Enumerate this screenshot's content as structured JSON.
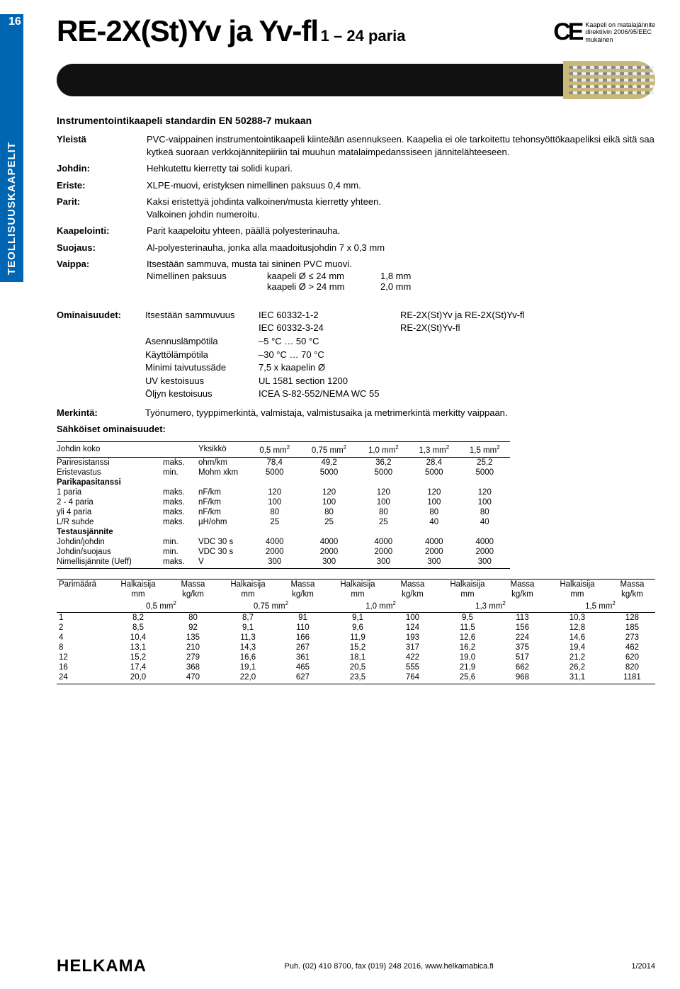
{
  "pageNumber": "16",
  "sideTab": "TEOLLISUUSKAAPELIT",
  "title": "RE-2X(St)Yv ja Yv-fl",
  "titleSuffix": "1 – 24 paria",
  "ceText": "Kaapeli on matalajännite\ndirektiivin 2006/95/EEC\nmukainen",
  "subtitle": "Instrumentointikaapeli standardin EN 50288-7 mukaan",
  "properties": [
    {
      "label": "Yleistä",
      "text": "PVC-vaippainen instrumentointikaapeli kiinteään asennukseen. Kaapelia ei ole tarkoitettu tehonsyöttökaapeliksi eikä sitä saa kytkeä suoraan verkkojännitepiiriin tai muuhun matalaimpedanssiseen jännitelähteeseen."
    },
    {
      "label": "Johdin:",
      "text": "Hehkutettu kierretty tai solidi kupari."
    },
    {
      "label": "Eriste:",
      "text": "XLPE-muovi, eristyksen nimellinen paksuus 0,4 mm."
    },
    {
      "label": "Parit:",
      "text": "Kaksi eristettyä johdinta valkoinen/musta kierretty yhteen.\nValkoinen johdin numeroitu."
    },
    {
      "label": "Kaapelointi:",
      "text": "Parit kaapeloitu yhteen, päällä polyesterinauha."
    },
    {
      "label": "Suojaus:",
      "text": "Al-polyesterinauha, jonka alla maadoitusjohdin 7 x 0,3 mm"
    },
    {
      "label": "Vaippa:",
      "text": "Itsestään sammuva, musta tai sininen PVC muovi."
    }
  ],
  "nominal": {
    "label": "Nimellinen paksuus",
    "rows": [
      {
        "cond": "kaapeli Ø ≤ 24 mm",
        "val": "1,8 mm"
      },
      {
        "cond": "kaapeli Ø > 24 mm",
        "val": "2,0 mm"
      }
    ]
  },
  "attributes": {
    "label": "Ominaisuudet:",
    "rows": [
      {
        "k": "Itsestään sammuvuus",
        "v": "IEC 60332-1-2",
        "r": "RE-2X(St)Yv ja RE-2X(St)Yv-fl"
      },
      {
        "k": "",
        "v": "IEC 60332-3-24",
        "r": "RE-2X(St)Yv-fl"
      },
      {
        "k": "Asennuslämpötila",
        "v": "–5 °C … 50 °C",
        "r": ""
      },
      {
        "k": "Käyttölämpötila",
        "v": "–30 °C … 70 °C",
        "r": ""
      },
      {
        "k": "Minimi taivutussäde",
        "v": "7,5 x kaapelin Ø",
        "r": ""
      },
      {
        "k": "UV kestoisuus",
        "v": "UL 1581 section 1200",
        "r": ""
      },
      {
        "k": "Öljyn kestoisuus",
        "v": "ICEA S-82-552/NEMA WC 55",
        "r": ""
      }
    ]
  },
  "merkinta": {
    "label": "Merkintä:",
    "text": "Työnumero, tyyppimerkintä, valmistaja, valmistusaika ja metrimerkintä merkitty vaippaan."
  },
  "elecTitle": "Sähköiset ominaisuudet:",
  "elecTable": {
    "unitHeader": "Yksikkö",
    "colHeaders": [
      "0,5 mm²",
      "0,75 mm²",
      "1,0 mm²",
      "1,3 mm²",
      "1,5 mm²"
    ],
    "groups": [
      {
        "label": "Johdin koko",
        "isHeader": true
      },
      {
        "label": "Pariresistanssi",
        "cond": "maks.",
        "unit": "ohm/km",
        "vals": [
          "78,4",
          "49,2",
          "36,2",
          "28,4",
          "25,2"
        ]
      },
      {
        "label": "Eristevastus",
        "cond": "min.",
        "unit": "Mohm xkm",
        "vals": [
          "5000",
          "5000",
          "5000",
          "5000",
          "5000"
        ]
      },
      {
        "label": "Parikapasitanssi",
        "bold": true
      },
      {
        "label": "1 paria",
        "cond": "maks.",
        "unit": "nF/km",
        "vals": [
          "120",
          "120",
          "120",
          "120",
          "120"
        ]
      },
      {
        "label": "2 - 4 paria",
        "cond": "maks.",
        "unit": "nF/km",
        "vals": [
          "100",
          "100",
          "100",
          "100",
          "100"
        ]
      },
      {
        "label": "yli 4 paria",
        "cond": "maks.",
        "unit": "nF/km",
        "vals": [
          "80",
          "80",
          "80",
          "80",
          "80"
        ]
      },
      {
        "label": "L/R suhde",
        "cond": "maks.",
        "unit": "µH/ohm",
        "vals": [
          "25",
          "25",
          "25",
          "40",
          "40"
        ]
      },
      {
        "label": "Testausjännite",
        "bold": true
      },
      {
        "label": "Johdin/johdin",
        "cond": "min.",
        "unit": "VDC 30 s",
        "vals": [
          "4000",
          "4000",
          "4000",
          "4000",
          "4000"
        ]
      },
      {
        "label": "Johdin/suojaus",
        "cond": "min.",
        "unit": "VDC 30 s",
        "vals": [
          "2000",
          "2000",
          "2000",
          "2000",
          "2000"
        ]
      },
      {
        "label": "Nimellisjännite (Ueff)",
        "cond": "maks.",
        "unit": "V",
        "vals": [
          "300",
          "300",
          "300",
          "300",
          "300"
        ],
        "last": true
      }
    ]
  },
  "dimTable": {
    "topHeaders": [
      "Parimäärä",
      "Halkaisija",
      "Massa",
      "Halkaisija",
      "Massa",
      "Halkaisija",
      "Massa",
      "Halkaisija",
      "Massa",
      "Halkaisija",
      "Massa"
    ],
    "units": [
      "",
      "mm",
      "kg/km",
      "mm",
      "kg/km",
      "mm",
      "kg/km",
      "mm",
      "kg/km",
      "mm",
      "kg/km"
    ],
    "sizeRow": [
      "",
      "0,5 mm²",
      "0,75 mm²",
      "1,0 mm²",
      "1,3 mm²",
      "1,5 mm²"
    ],
    "rows": [
      {
        "p": "1",
        "v": [
          "8,2",
          "80",
          "8,7",
          "91",
          "9,1",
          "100",
          "9,5",
          "113",
          "10,3",
          "128"
        ]
      },
      {
        "p": "2",
        "v": [
          "8,5",
          "92",
          "9,1",
          "110",
          "9,6",
          "124",
          "11,5",
          "156",
          "12,8",
          "185"
        ]
      },
      {
        "p": "4",
        "v": [
          "10,4",
          "135",
          "11,3",
          "166",
          "11,9",
          "193",
          "12,6",
          "224",
          "14,6",
          "273"
        ]
      },
      {
        "p": "8",
        "v": [
          "13,1",
          "210",
          "14,3",
          "267",
          "15,2",
          "317",
          "16,2",
          "375",
          "19,4",
          "462"
        ]
      },
      {
        "p": "12",
        "v": [
          "15,2",
          "279",
          "16,6",
          "361",
          "18,1",
          "422",
          "19,0",
          "517",
          "21,2",
          "620"
        ]
      },
      {
        "p": "16",
        "v": [
          "17,4",
          "368",
          "19,1",
          "465",
          "20,5",
          "555",
          "21,9",
          "662",
          "26,2",
          "820"
        ]
      },
      {
        "p": "24",
        "v": [
          "20,0",
          "470",
          "22,0",
          "627",
          "23,5",
          "764",
          "25,6",
          "968",
          "31,1",
          "1181"
        ]
      }
    ]
  },
  "footer": {
    "logo": "HELKAMA",
    "contact": "Puh. (02) 410 8700, fax (019) 248 2016, www.helkamabica.fi",
    "date": "1/2014"
  }
}
